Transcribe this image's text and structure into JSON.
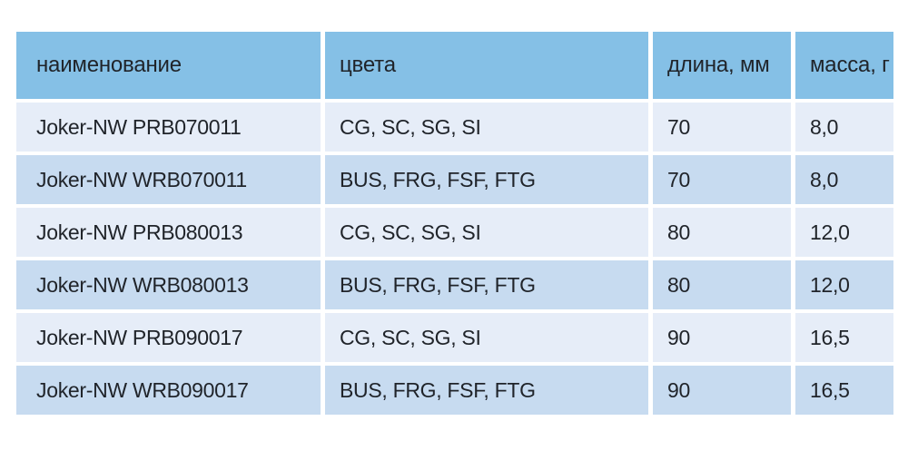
{
  "theme": {
    "header-bg": "#85c0e6",
    "row-light-bg": "#e6edf8",
    "row-dark-bg": "#c7dbf0",
    "text-color": "#20242a",
    "page-bg": "#ffffff"
  },
  "table": {
    "columns": [
      {
        "label": "наименование"
      },
      {
        "label": "цвета"
      },
      {
        "label": "длина, мм"
      },
      {
        "label": "масса, г"
      }
    ],
    "rows": [
      {
        "name": "Joker-NW PRB070011",
        "colors": "CG, SC, SG, SI",
        "length": "70",
        "mass": "8,0"
      },
      {
        "name": "Joker-NW WRB070011",
        "colors": "BUS, FRG, FSF, FTG",
        "length": "70",
        "mass": "8,0"
      },
      {
        "name": "Joker-NW PRB080013",
        "colors": "CG, SC, SG, SI",
        "length": "80",
        "mass": "12,0"
      },
      {
        "name": "Joker-NW WRB080013",
        "colors": "BUS, FRG, FSF, FTG",
        "length": "80",
        "mass": "12,0"
      },
      {
        "name": "Joker-NW PRB090017",
        "colors": "CG, SC, SG, SI",
        "length": "90",
        "mass": "16,5"
      },
      {
        "name": "Joker-NW WRB090017",
        "colors": "BUS, FRG, FSF, FTG",
        "length": "90",
        "mass": "16,5"
      }
    ]
  },
  "chart_data": {
    "type": "table",
    "title": "",
    "columns": [
      "наименование",
      "цвета",
      "длина, мм",
      "масса, г"
    ],
    "rows": [
      [
        "Joker-NW PRB070011",
        "CG, SC, SG, SI",
        70,
        "8,0"
      ],
      [
        "Joker-NW WRB070011",
        "BUS, FRG, FSF, FTG",
        70,
        "8,0"
      ],
      [
        "Joker-NW PRB080013",
        "CG, SC, SG, SI",
        80,
        "12,0"
      ],
      [
        "Joker-NW WRB080013",
        "BUS, FRG, FSF, FTG",
        80,
        "12,0"
      ],
      [
        "Joker-NW PRB090017",
        "CG, SC, SG, SI",
        90,
        "16,5"
      ],
      [
        "Joker-NW WRB090017",
        "BUS, FRG, FSF, FTG",
        90,
        "16,5"
      ]
    ],
    "layout_hints": {
      "header_style": "sky-blue band",
      "row_striping": "light/medium blue alternating starting light",
      "cell_gaps": "white gutters between all cells",
      "grid": false
    }
  }
}
